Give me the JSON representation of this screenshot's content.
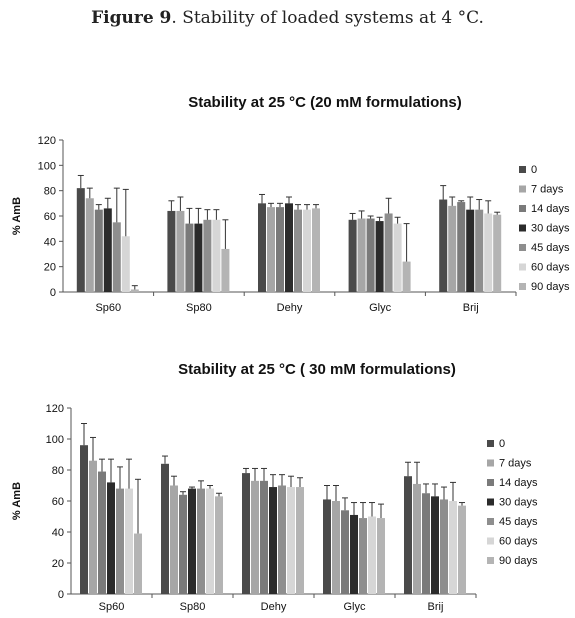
{
  "caption": {
    "figure_label": "Figure 9",
    "text": ". Stability of loaded systems at 4 °C."
  },
  "colors": [
    "#4a4a4a",
    "#a6a6a6",
    "#7a7a7a",
    "#2b2b2b",
    "#8e8e8e",
    "#d6d6d6",
    "#b4b4b4"
  ],
  "chart_data": [
    {
      "type": "bar",
      "title": "Stability at 25 °C (20 mM formulations)",
      "ylabel": "% AmB",
      "xlabel": "",
      "ylim": [
        0,
        120
      ],
      "yticks": [
        0,
        20,
        40,
        60,
        80,
        100,
        120
      ],
      "categories": [
        "Sp60",
        "Sp80",
        "Dehy",
        "Glyc",
        "Brij"
      ],
      "legend_position": "right",
      "series": [
        {
          "name": "0",
          "values": [
            82,
            64,
            70,
            57,
            73
          ],
          "errors": [
            10,
            8,
            7,
            5,
            11
          ]
        },
        {
          "name": "7 days",
          "values": [
            74,
            64,
            67,
            58,
            68
          ],
          "errors": [
            8,
            11,
            3,
            6,
            7
          ]
        },
        {
          "name": "14 days",
          "values": [
            65,
            54,
            67,
            58,
            71
          ],
          "errors": [
            4,
            12,
            3,
            2,
            1
          ]
        },
        {
          "name": "30 days",
          "values": [
            66,
            54,
            70,
            56,
            65
          ],
          "errors": [
            8,
            12,
            5,
            3,
            10
          ]
        },
        {
          "name": "45 days",
          "values": [
            55,
            57,
            65,
            62,
            65
          ],
          "errors": [
            27,
            8,
            4,
            12,
            8
          ]
        },
        {
          "name": "60 days",
          "values": [
            44,
            57,
            65,
            54,
            62
          ],
          "errors": [
            37,
            8,
            4,
            5,
            10
          ]
        },
        {
          "name": "90 days",
          "values": [
            2,
            34,
            66,
            24,
            61
          ],
          "errors": [
            3,
            23,
            3,
            30,
            2
          ]
        }
      ]
    },
    {
      "type": "bar",
      "title": "Stability at 25 °C ( 30 mM formulations)",
      "ylabel": "% AmB",
      "xlabel": "",
      "ylim": [
        0,
        120
      ],
      "yticks": [
        0,
        20,
        40,
        60,
        80,
        100,
        120
      ],
      "categories": [
        "Sp60",
        "Sp80",
        "Dehy",
        "Glyc",
        "Brij"
      ],
      "legend_position": "right",
      "series": [
        {
          "name": "0",
          "values": [
            96,
            84,
            78,
            61,
            76
          ],
          "errors": [
            14,
            5,
            3,
            9,
            9
          ]
        },
        {
          "name": "7 days",
          "values": [
            86,
            70,
            73,
            60,
            71
          ],
          "errors": [
            15,
            6,
            8,
            10,
            14
          ]
        },
        {
          "name": "14 days",
          "values": [
            79,
            64,
            73,
            54,
            65
          ],
          "errors": [
            8,
            2,
            8,
            8,
            6
          ]
        },
        {
          "name": "30 days",
          "values": [
            72,
            68,
            69,
            51,
            63
          ],
          "errors": [
            15,
            1,
            8,
            8,
            8
          ]
        },
        {
          "name": "45 days",
          "values": [
            68,
            68,
            70,
            49,
            61
          ],
          "errors": [
            14,
            5,
            7,
            10,
            8
          ]
        },
        {
          "name": "60 days",
          "values": [
            68,
            68,
            69,
            50,
            60
          ],
          "errors": [
            19,
            2,
            7,
            9,
            12
          ]
        },
        {
          "name": "90 days",
          "values": [
            39,
            63,
            69,
            49,
            57
          ],
          "errors": [
            35,
            2,
            6,
            9,
            2
          ]
        }
      ]
    }
  ]
}
